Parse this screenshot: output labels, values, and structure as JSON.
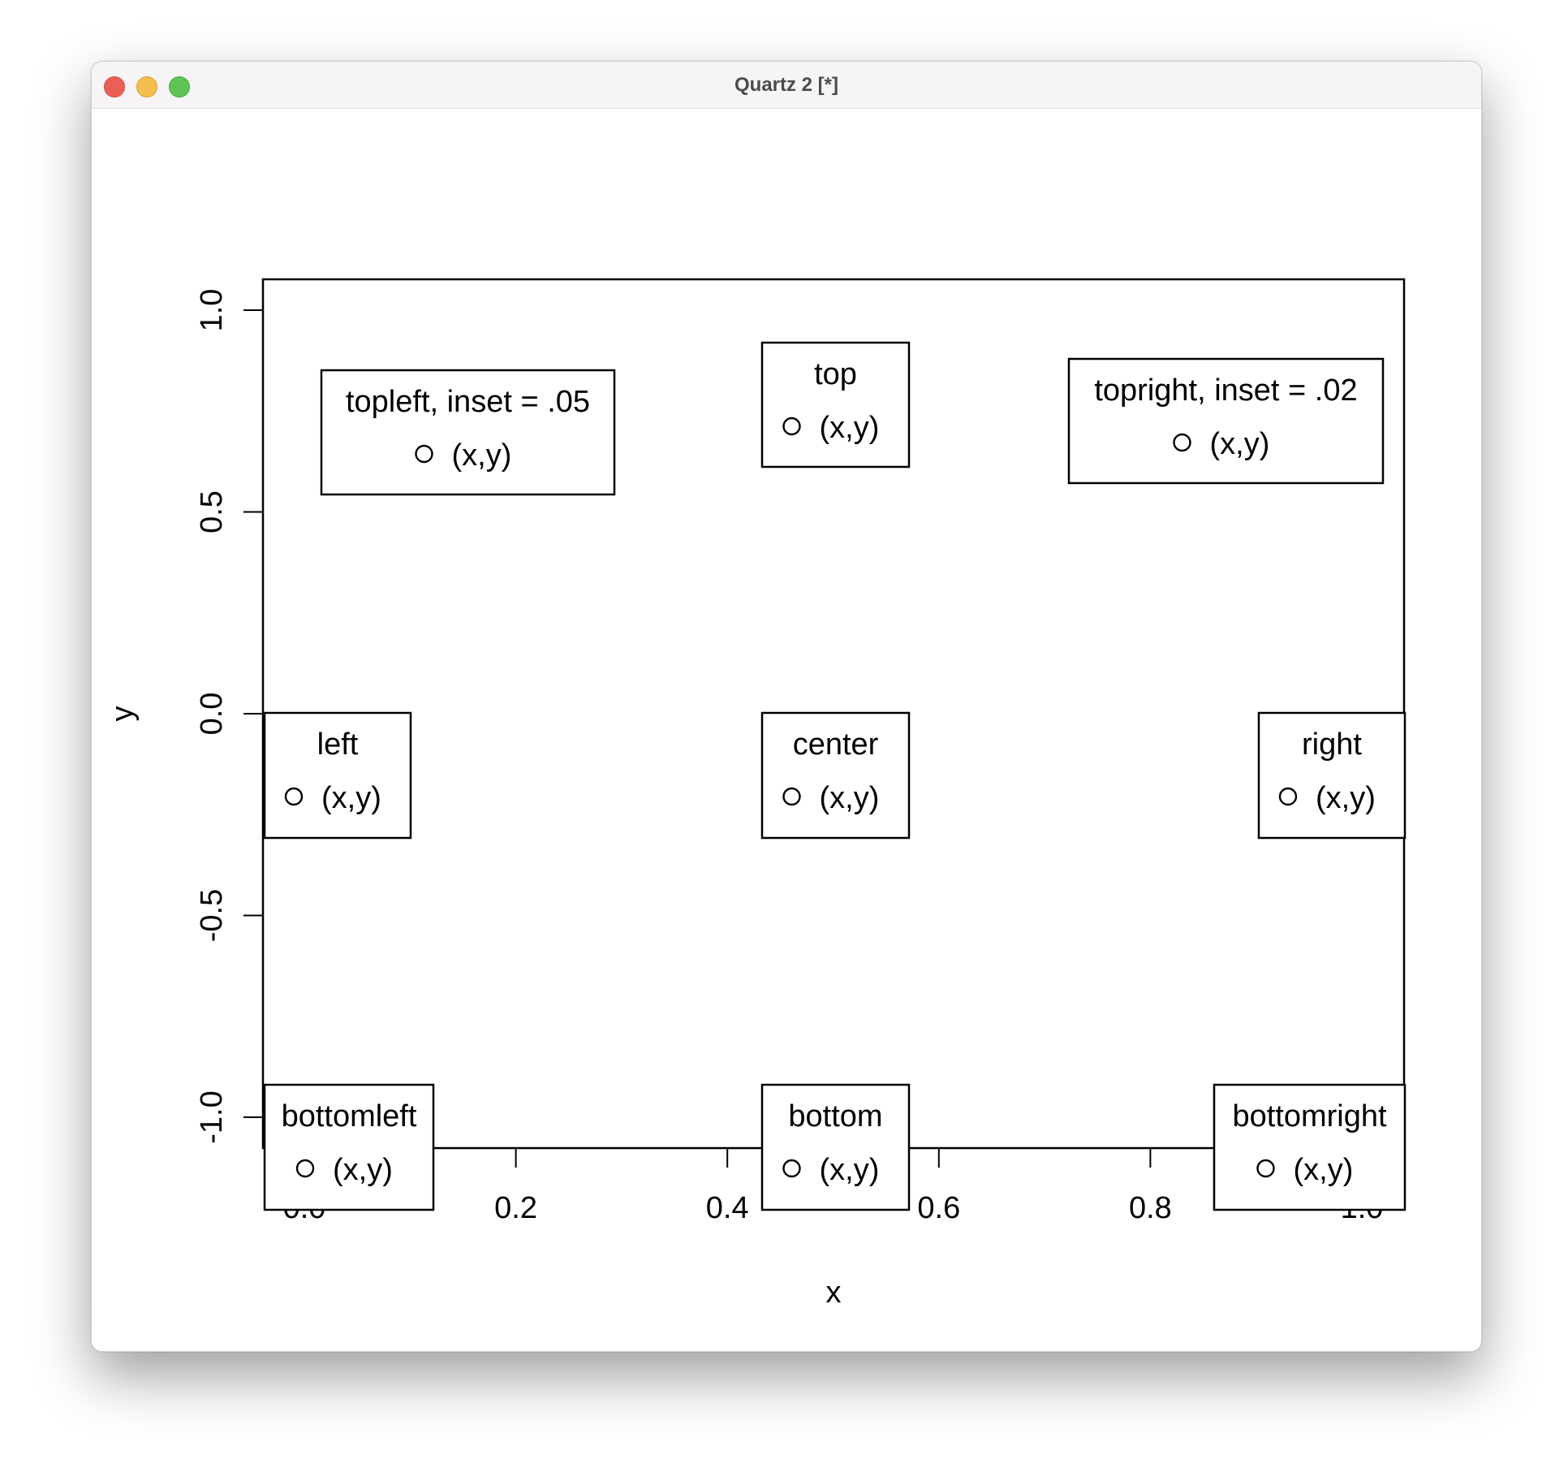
{
  "window": {
    "title": "Quartz 2 [*]"
  },
  "chart_data": {
    "type": "scatter",
    "title": "",
    "xlabel": "x",
    "ylabel": "y",
    "xlim": [
      0,
      1
    ],
    "ylim": [
      -1,
      1
    ],
    "xticks": [
      "0.0",
      "0.2",
      "0.4",
      "0.6",
      "0.8",
      "1.0"
    ],
    "yticks": [
      "-1.0",
      "-0.5",
      "0.0",
      "0.5",
      "1.0"
    ],
    "grid": false,
    "legends": [
      {
        "position": "topleft",
        "title": "topleft, inset = .05",
        "label": "(x,y)"
      },
      {
        "position": "top",
        "title": "top",
        "label": "(x,y)"
      },
      {
        "position": "topright",
        "title": "topright, inset = .02",
        "label": "(x,y)"
      },
      {
        "position": "left",
        "title": "left",
        "label": "(x,y)"
      },
      {
        "position": "center",
        "title": "center",
        "label": "(x,y)"
      },
      {
        "position": "right",
        "title": "right",
        "label": "(x,y)"
      },
      {
        "position": "bottomleft",
        "title": "bottomleft",
        "label": "(x,y)"
      },
      {
        "position": "bottom",
        "title": "bottom",
        "label": "(x,y)"
      },
      {
        "position": "bottomright",
        "title": "bottomright",
        "label": "(x,y)"
      }
    ]
  }
}
